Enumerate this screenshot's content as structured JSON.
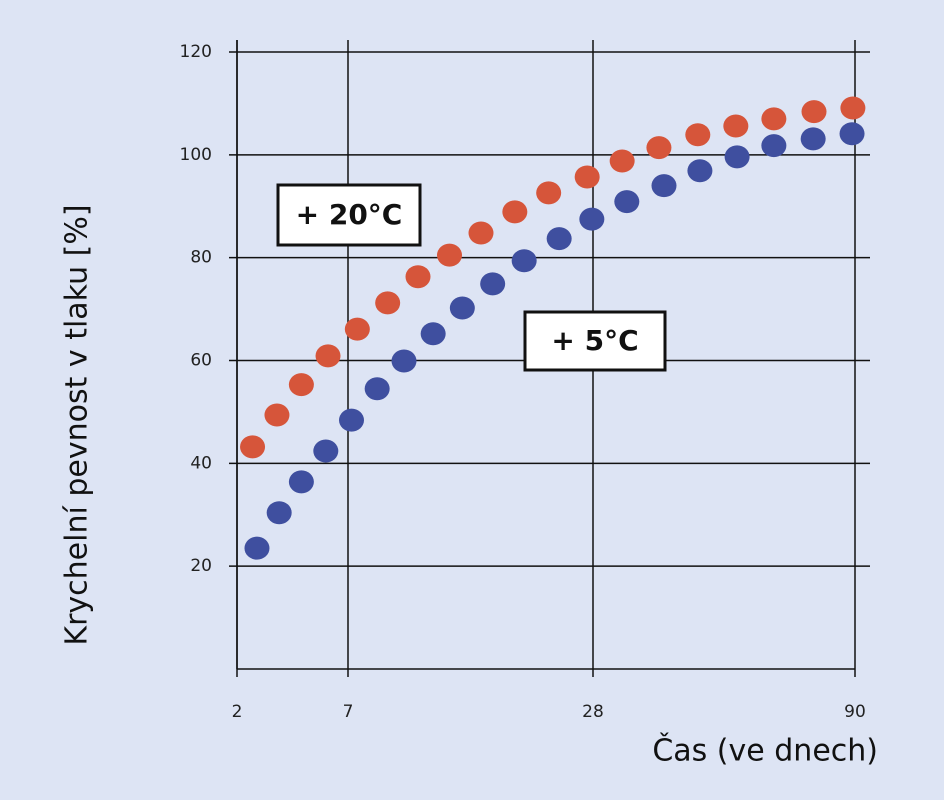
{
  "chart_data": {
    "type": "scatter",
    "y_label": "Krychelní pevnost v tlaku [%]",
    "x_label": "Čas (ve dnech)",
    "xlim": [
      2,
      90
    ],
    "xticks": [
      2,
      7,
      28,
      90
    ],
    "ylim": [
      0,
      120
    ],
    "yticks": [
      20,
      40,
      60,
      80,
      100,
      120
    ],
    "grid": true,
    "annotations": [
      "+ 20°C",
      "+ 5°C"
    ],
    "series": [
      {
        "name": "+ 20°C",
        "color": "#d6553a",
        "x": [
          2.7,
          3.8,
          4.9,
          6.1,
          7.8,
          10.4,
          13.0,
          15.7,
          18.4,
          21.3,
          24.2,
          27.5,
          34.9,
          43.6,
          52.8,
          61.8,
          70.8,
          80.3,
          89.5
        ],
        "values": [
          43.2,
          49.4,
          55.3,
          60.9,
          66.1,
          71.2,
          76.3,
          80.5,
          84.8,
          88.9,
          92.6,
          95.7,
          98.8,
          101.4,
          103.9,
          105.6,
          107.0,
          108.4,
          109.1
        ]
      },
      {
        "name": "+ 5°C",
        "color": "#3f4f9f",
        "x": [
          2.9,
          3.9,
          4.9,
          6.0,
          7.3,
          9.5,
          11.8,
          14.3,
          16.8,
          19.4,
          22.1,
          25.1,
          27.9,
          36.0,
          44.8,
          53.3,
          62.1,
          70.8,
          80.1,
          89.3
        ],
        "values": [
          23.5,
          30.4,
          36.4,
          42.4,
          48.4,
          54.5,
          59.9,
          65.2,
          70.2,
          74.9,
          79.4,
          83.7,
          87.5,
          90.9,
          94.0,
          96.9,
          99.6,
          101.8,
          103.1,
          104.1
        ]
      }
    ]
  }
}
